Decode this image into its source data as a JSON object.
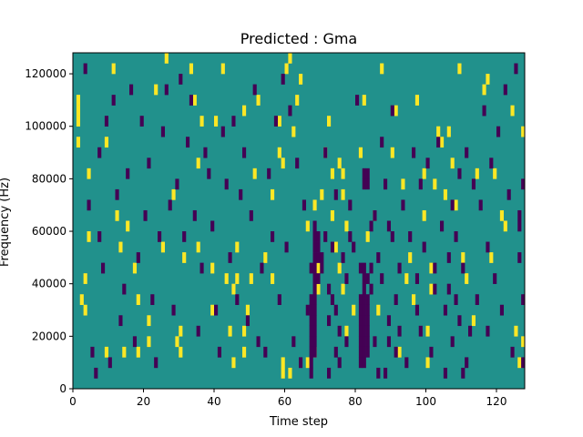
{
  "chart_data": {
    "type": "heatmap",
    "title": "Predicted : Gma",
    "xlabel": "Time step",
    "ylabel": "Frequency (Hz)",
    "xlim": [
      0,
      128
    ],
    "ylim": [
      0,
      128000
    ],
    "x_ticks": [
      0,
      20,
      40,
      60,
      80,
      100,
      120
    ],
    "y_ticks": [
      0,
      20000,
      40000,
      60000,
      80000,
      100000,
      120000
    ],
    "y_tick_labels": [
      "0",
      "20000",
      "40000",
      "60000",
      "80000",
      "100000",
      "120000"
    ],
    "time_steps": 128,
    "frequency_bins": 32,
    "colormap": {
      "low": "#440154",
      "mid": "#21918c",
      "high": "#fde725"
    },
    "background_value": "mid",
    "high_cells": [
      [
        1,
        26
      ],
      [
        1,
        27
      ],
      [
        1,
        25
      ],
      [
        1,
        23
      ],
      [
        2,
        8
      ],
      [
        3,
        10
      ],
      [
        3,
        7
      ],
      [
        4,
        20
      ],
      [
        4,
        14
      ],
      [
        9,
        3
      ],
      [
        9,
        23
      ],
      [
        11,
        30
      ],
      [
        12,
        16
      ],
      [
        13,
        13
      ],
      [
        14,
        3
      ],
      [
        15,
        15
      ],
      [
        17,
        11
      ],
      [
        18,
        8
      ],
      [
        18,
        3
      ],
      [
        21,
        6
      ],
      [
        21,
        4
      ],
      [
        23,
        28
      ],
      [
        25,
        13
      ],
      [
        26,
        31
      ],
      [
        28,
        18
      ],
      [
        29,
        4
      ],
      [
        30,
        5
      ],
      [
        30,
        3
      ],
      [
        31,
        12
      ],
      [
        33,
        30
      ],
      [
        34,
        27
      ],
      [
        35,
        13
      ],
      [
        35,
        21
      ],
      [
        36,
        25
      ],
      [
        39,
        11
      ],
      [
        39,
        7
      ],
      [
        40,
        25
      ],
      [
        42,
        30
      ],
      [
        43,
        10
      ],
      [
        44,
        5
      ],
      [
        45,
        2
      ],
      [
        45,
        9
      ],
      [
        46,
        13
      ],
      [
        46,
        10
      ],
      [
        48,
        5
      ],
      [
        48,
        3
      ],
      [
        48,
        26
      ],
      [
        49,
        7
      ],
      [
        50,
        10
      ],
      [
        51,
        20
      ],
      [
        52,
        27
      ],
      [
        54,
        12
      ],
      [
        56,
        10
      ],
      [
        56,
        18
      ],
      [
        58,
        25
      ],
      [
        58,
        22
      ],
      [
        59,
        21
      ],
      [
        59,
        2
      ],
      [
        59,
        1
      ],
      [
        60,
        30
      ],
      [
        61,
        1
      ],
      [
        61,
        31
      ],
      [
        62,
        24
      ],
      [
        63,
        27
      ],
      [
        64,
        29
      ],
      [
        66,
        2
      ],
      [
        66,
        15
      ],
      [
        68,
        17
      ],
      [
        68,
        3
      ],
      [
        69,
        11
      ],
      [
        69,
        9
      ],
      [
        70,
        18
      ],
      [
        71,
        22
      ],
      [
        72,
        25
      ],
      [
        73,
        20
      ],
      [
        73,
        16
      ],
      [
        74,
        13
      ],
      [
        75,
        21
      ],
      [
        75,
        11
      ],
      [
        76,
        9
      ],
      [
        76,
        18
      ],
      [
        76,
        20
      ],
      [
        77,
        5
      ],
      [
        77,
        15
      ],
      [
        79,
        7
      ],
      [
        81,
        22
      ],
      [
        82,
        27
      ],
      [
        83,
        14
      ],
      [
        85,
        16
      ],
      [
        86,
        7
      ],
      [
        87,
        30
      ],
      [
        90,
        22
      ],
      [
        91,
        26
      ],
      [
        92,
        3
      ],
      [
        93,
        19
      ],
      [
        94,
        10
      ],
      [
        95,
        12
      ],
      [
        96,
        8
      ],
      [
        97,
        27
      ],
      [
        99,
        16
      ],
      [
        99,
        20
      ],
      [
        100,
        5
      ],
      [
        100,
        2
      ],
      [
        101,
        11
      ],
      [
        101,
        9
      ],
      [
        102,
        19
      ],
      [
        103,
        24
      ],
      [
        104,
        23
      ],
      [
        105,
        18
      ],
      [
        106,
        24
      ],
      [
        107,
        21
      ],
      [
        108,
        17
      ],
      [
        109,
        30
      ],
      [
        110,
        12
      ],
      [
        111,
        10
      ],
      [
        113,
        6
      ],
      [
        114,
        20
      ],
      [
        116,
        28
      ],
      [
        117,
        29
      ],
      [
        118,
        12
      ],
      [
        119,
        20
      ],
      [
        121,
        16
      ],
      [
        122,
        15
      ],
      [
        124,
        26
      ],
      [
        125,
        5
      ],
      [
        126,
        2
      ],
      [
        127,
        4
      ],
      [
        127,
        24
      ]
    ],
    "low_cells": [
      [
        3,
        30
      ],
      [
        4,
        17
      ],
      [
        5,
        3
      ],
      [
        6,
        1
      ],
      [
        7,
        14
      ],
      [
        7,
        22
      ],
      [
        8,
        11
      ],
      [
        9,
        25
      ],
      [
        10,
        2
      ],
      [
        11,
        27
      ],
      [
        12,
        18
      ],
      [
        13,
        6
      ],
      [
        14,
        9
      ],
      [
        15,
        20
      ],
      [
        16,
        28
      ],
      [
        17,
        4
      ],
      [
        18,
        12
      ],
      [
        19,
        25
      ],
      [
        20,
        16
      ],
      [
        21,
        21
      ],
      [
        22,
        8
      ],
      [
        23,
        2
      ],
      [
        24,
        14
      ],
      [
        25,
        24
      ],
      [
        26,
        28
      ],
      [
        27,
        17
      ],
      [
        28,
        7
      ],
      [
        29,
        19
      ],
      [
        30,
        29
      ],
      [
        31,
        14
      ],
      [
        32,
        23
      ],
      [
        33,
        27
      ],
      [
        34,
        16
      ],
      [
        35,
        5
      ],
      [
        36,
        11
      ],
      [
        37,
        22
      ],
      [
        38,
        20
      ],
      [
        39,
        15
      ],
      [
        40,
        7
      ],
      [
        41,
        3
      ],
      [
        42,
        24
      ],
      [
        43,
        19
      ],
      [
        44,
        12
      ],
      [
        45,
        25
      ],
      [
        46,
        8
      ],
      [
        47,
        18
      ],
      [
        48,
        22
      ],
      [
        49,
        6
      ],
      [
        50,
        16
      ],
      [
        51,
        28
      ],
      [
        52,
        4
      ],
      [
        53,
        11
      ],
      [
        54,
        3
      ],
      [
        55,
        20
      ],
      [
        56,
        14
      ],
      [
        57,
        25
      ],
      [
        58,
        8
      ],
      [
        59,
        29
      ],
      [
        60,
        13
      ],
      [
        61,
        26
      ],
      [
        62,
        4
      ],
      [
        63,
        21
      ],
      [
        64,
        2
      ],
      [
        65,
        17
      ],
      [
        66,
        7
      ],
      [
        67,
        11
      ],
      [
        67,
        8
      ],
      [
        67,
        7
      ],
      [
        67,
        6
      ],
      [
        67,
        5
      ],
      [
        67,
        4
      ],
      [
        67,
        3
      ],
      [
        67,
        2
      ],
      [
        67,
        1
      ],
      [
        68,
        15
      ],
      [
        68,
        14
      ],
      [
        68,
        13
      ],
      [
        68,
        12
      ],
      [
        68,
        11
      ],
      [
        68,
        10
      ],
      [
        68,
        9
      ],
      [
        68,
        8
      ],
      [
        68,
        7
      ],
      [
        68,
        6
      ],
      [
        68,
        5
      ],
      [
        68,
        4
      ],
      [
        68,
        3
      ],
      [
        69,
        14
      ],
      [
        69,
        13
      ],
      [
        69,
        12
      ],
      [
        69,
        10
      ],
      [
        70,
        12
      ],
      [
        70,
        11
      ],
      [
        71,
        14
      ],
      [
        71,
        22
      ],
      [
        72,
        9
      ],
      [
        72,
        6
      ],
      [
        72,
        1
      ],
      [
        73,
        13
      ],
      [
        73,
        8
      ],
      [
        74,
        18
      ],
      [
        74,
        7
      ],
      [
        74,
        3
      ],
      [
        75,
        5
      ],
      [
        75,
        2
      ],
      [
        76,
        12
      ],
      [
        77,
        10
      ],
      [
        77,
        4
      ],
      [
        78,
        17
      ],
      [
        78,
        14
      ],
      [
        79,
        13
      ],
      [
        80,
        27
      ],
      [
        81,
        11
      ],
      [
        81,
        8
      ],
      [
        81,
        7
      ],
      [
        81,
        6
      ],
      [
        81,
        5
      ],
      [
        81,
        4
      ],
      [
        81,
        3
      ],
      [
        81,
        2
      ],
      [
        82,
        20
      ],
      [
        82,
        19
      ],
      [
        82,
        11
      ],
      [
        82,
        10
      ],
      [
        82,
        9
      ],
      [
        82,
        8
      ],
      [
        82,
        7
      ],
      [
        82,
        6
      ],
      [
        82,
        5
      ],
      [
        82,
        4
      ],
      [
        82,
        3
      ],
      [
        82,
        2
      ],
      [
        83,
        20
      ],
      [
        83,
        19
      ],
      [
        83,
        10
      ],
      [
        83,
        8
      ],
      [
        83,
        7
      ],
      [
        83,
        6
      ],
      [
        83,
        5
      ],
      [
        83,
        4
      ],
      [
        83,
        3
      ],
      [
        84,
        15
      ],
      [
        84,
        11
      ],
      [
        84,
        9
      ],
      [
        85,
        16
      ],
      [
        85,
        4
      ],
      [
        86,
        12
      ],
      [
        86,
        1
      ],
      [
        87,
        23
      ],
      [
        87,
        10
      ],
      [
        88,
        19
      ],
      [
        88,
        1
      ],
      [
        89,
        15
      ],
      [
        89,
        6
      ],
      [
        89,
        4
      ],
      [
        90,
        26
      ],
      [
        90,
        14
      ],
      [
        91,
        8
      ],
      [
        91,
        3
      ],
      [
        92,
        11
      ],
      [
        92,
        5
      ],
      [
        93,
        17
      ],
      [
        94,
        2
      ],
      [
        95,
        14
      ],
      [
        96,
        22
      ],
      [
        97,
        10
      ],
      [
        97,
        7
      ],
      [
        98,
        19
      ],
      [
        98,
        5
      ],
      [
        99,
        13
      ],
      [
        100,
        21
      ],
      [
        101,
        3
      ],
      [
        102,
        11
      ],
      [
        102,
        9
      ],
      [
        103,
        23
      ],
      [
        104,
        15
      ],
      [
        105,
        7
      ],
      [
        105,
        1
      ],
      [
        106,
        12
      ],
      [
        106,
        9
      ],
      [
        107,
        17
      ],
      [
        107,
        4
      ],
      [
        108,
        14
      ],
      [
        108,
        8
      ],
      [
        109,
        20
      ],
      [
        109,
        6
      ],
      [
        110,
        11
      ],
      [
        110,
        1
      ],
      [
        111,
        22
      ],
      [
        111,
        2
      ],
      [
        112,
        5
      ],
      [
        113,
        19
      ],
      [
        114,
        8
      ],
      [
        115,
        17
      ],
      [
        116,
        26
      ],
      [
        117,
        13
      ],
      [
        117,
        5
      ],
      [
        118,
        21
      ],
      [
        119,
        10
      ],
      [
        120,
        24
      ],
      [
        121,
        7
      ],
      [
        122,
        28
      ],
      [
        123,
        18
      ],
      [
        124,
        3
      ],
      [
        125,
        30
      ],
      [
        126,
        12
      ],
      [
        126,
        15
      ],
      [
        126,
        16
      ],
      [
        127,
        2
      ],
      [
        127,
        8
      ],
      [
        127,
        19
      ]
    ]
  }
}
